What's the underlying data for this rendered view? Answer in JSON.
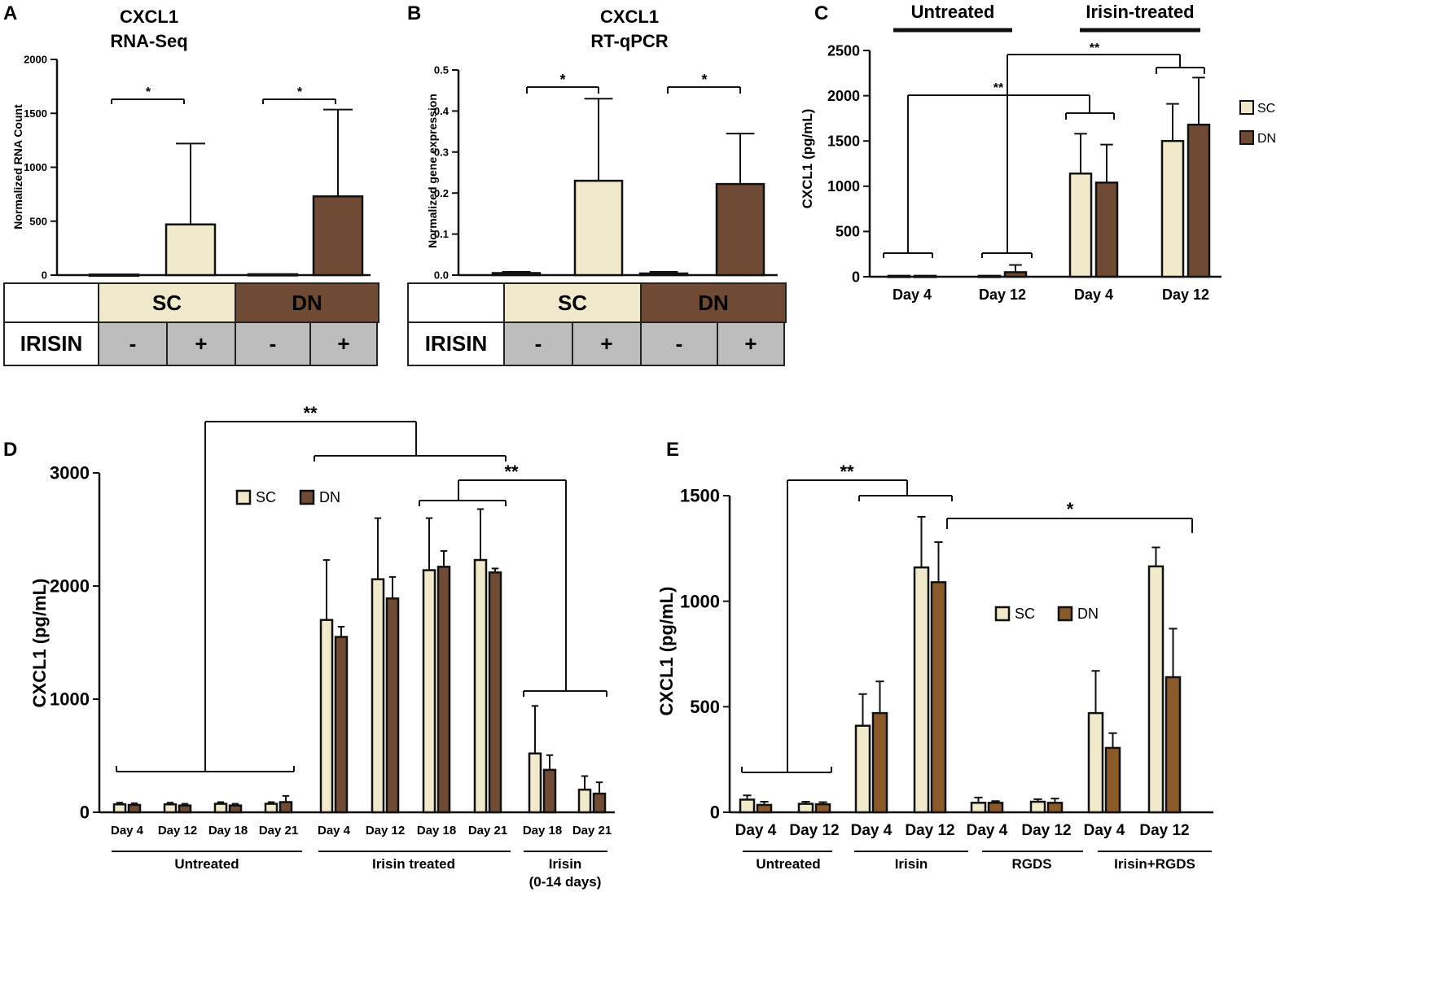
{
  "colors": {
    "sc": "#F1E9CC",
    "dn_dark": "#6F4B35",
    "dn_brown": "#8A5A2B",
    "table_gray": "#BDBDBD",
    "table_dn": "#6F4B35",
    "table_sc": "#F1E9CC"
  },
  "chart_data": [
    {
      "panel": "A",
      "type": "bar",
      "title": "CXCL1",
      "subtitle": "RNA-Seq",
      "ylabel": "Normalized RNA Count",
      "ylim": [
        0,
        2000
      ],
      "yticks": [
        0,
        500,
        1000,
        1500,
        2000
      ],
      "bars": [
        {
          "group": "SC",
          "irisin": "-",
          "value": 5,
          "error": 0
        },
        {
          "group": "SC",
          "irisin": "+",
          "value": 470,
          "error": 750
        },
        {
          "group": "DN",
          "irisin": "-",
          "value": 8,
          "error": 0
        },
        {
          "group": "DN",
          "irisin": "+",
          "value": 730,
          "error": 805
        }
      ],
      "significance": [
        "*",
        "*"
      ],
      "table": {
        "row1": [
          "",
          "SC",
          "DN"
        ],
        "row2_label": "IRISIN",
        "row2": [
          "-",
          "+",
          "-",
          "+"
        ]
      }
    },
    {
      "panel": "B",
      "type": "bar",
      "title": "CXCL1",
      "subtitle": "RT-qPCR",
      "ylabel": "Normalized gene expression",
      "ylim": [
        0,
        0.5
      ],
      "yticks": [
        "0.0",
        "0.1",
        "0.2",
        "0.3",
        "0.4",
        "0.5"
      ],
      "bars": [
        {
          "group": "SC",
          "irisin": "-",
          "value": 0.005,
          "error": 0.003
        },
        {
          "group": "SC",
          "irisin": "+",
          "value": 0.23,
          "error": 0.2
        },
        {
          "group": "DN",
          "irisin": "-",
          "value": 0.004,
          "error": 0.004
        },
        {
          "group": "DN",
          "irisin": "+",
          "value": 0.222,
          "error": 0.123
        }
      ],
      "significance": [
        "*",
        "*"
      ],
      "table": {
        "row1": [
          "",
          "SC",
          "DN"
        ],
        "row2_label": "IRISIN",
        "row2": [
          "-",
          "+",
          "-",
          "+"
        ]
      }
    },
    {
      "panel": "C",
      "type": "bar",
      "ylabel": "CXCL1 (pg/mL)",
      "ylim": [
        0,
        2500
      ],
      "yticks": [
        0,
        500,
        1000,
        1500,
        2000,
        2500
      ],
      "headers": [
        "Untreated",
        "Irisin-treated"
      ],
      "categories": [
        "Day 4",
        "Day 12",
        "Day 4",
        "Day 12"
      ],
      "series": [
        {
          "name": "SC",
          "values": [
            10,
            10,
            1140,
            1500
          ],
          "errors": [
            0,
            0,
            440,
            410
          ]
        },
        {
          "name": "DN",
          "values": [
            10,
            50,
            1040,
            1680
          ],
          "errors": [
            0,
            80,
            420,
            520
          ]
        }
      ],
      "legend": [
        "SC",
        "DN"
      ],
      "significance": [
        "**",
        "**"
      ]
    },
    {
      "panel": "D",
      "type": "bar",
      "ylabel": "CXCL1 (pg/mL)",
      "ylim": [
        0,
        3000
      ],
      "yticks": [
        0,
        1000,
        2000,
        3000
      ],
      "categories": [
        "Day 4",
        "Day 12",
        "Day 18",
        "Day 21",
        "Day 4",
        "Day 12",
        "Day 18",
        "Day 21",
        "Day 18",
        "Day 21"
      ],
      "series": [
        {
          "name": "SC",
          "values": [
            70,
            70,
            75,
            75,
            1700,
            2060,
            2140,
            2230,
            520,
            200
          ],
          "errors": [
            15,
            15,
            15,
            15,
            530,
            540,
            460,
            450,
            420,
            120
          ]
        },
        {
          "name": "DN",
          "values": [
            65,
            60,
            60,
            90,
            1550,
            1890,
            2170,
            2120,
            375,
            165
          ],
          "errors": [
            15,
            15,
            15,
            55,
            90,
            190,
            140,
            35,
            130,
            100
          ]
        }
      ],
      "groups": [
        "Untreated",
        "Irisin treated",
        "Irisin",
        "(0-14 days)"
      ],
      "legend": [
        "SC",
        "DN"
      ],
      "significance": [
        "**",
        "**"
      ]
    },
    {
      "panel": "E",
      "type": "bar",
      "ylabel": "CXCL1 (pg/mL)",
      "ylim": [
        0,
        1500
      ],
      "yticks": [
        0,
        500,
        1000,
        1500
      ],
      "categories": [
        "Day 4",
        "Day 12",
        "Day 4",
        "Day 12",
        "Day 4",
        "Day 12",
        "Day 4",
        "Day 12"
      ],
      "series": [
        {
          "name": "SC",
          "values": [
            60,
            40,
            410,
            1160,
            45,
            50,
            470,
            1165
          ],
          "errors": [
            20,
            10,
            150,
            240,
            25,
            12,
            200,
            90
          ]
        },
        {
          "name": "DN",
          "values": [
            35,
            38,
            470,
            1090,
            45,
            45,
            305,
            640
          ],
          "errors": [
            15,
            10,
            150,
            190,
            8,
            20,
            70,
            230
          ]
        }
      ],
      "groups": [
        "Untreated",
        "Irisin",
        "RGDS",
        "Irisin+RGDS"
      ],
      "legend": [
        "SC",
        "DN"
      ],
      "significance": [
        "**",
        "*"
      ]
    }
  ]
}
